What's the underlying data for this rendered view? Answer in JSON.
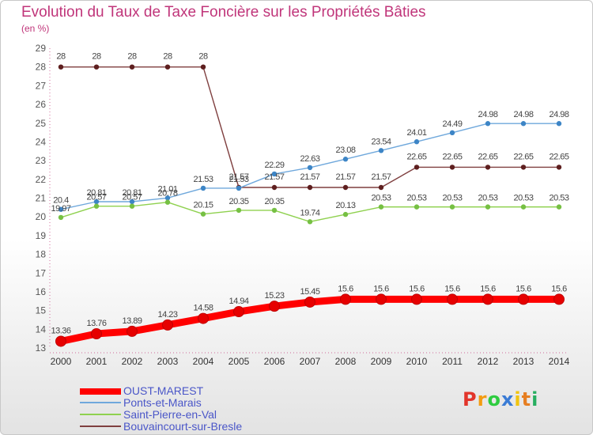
{
  "header": {
    "title": "Evolution du Taux de Taxe Foncière sur les Propriétés Bâties",
    "unit": "(en %)"
  },
  "logo": {
    "text": "Proxiti",
    "colors": [
      "#e2352b",
      "#f39c12",
      "#2ecc40",
      "#3a7bd5",
      "#f1c40f",
      "#e67e22",
      "#27ae60"
    ]
  },
  "chart_data": {
    "type": "line",
    "x": [
      "2000",
      "2001",
      "2002",
      "2003",
      "2004",
      "2005",
      "2006",
      "2007",
      "2008",
      "2009",
      "2010",
      "2011",
      "2012",
      "2013",
      "2014"
    ],
    "ylim": [
      13,
      29
    ],
    "yticks": [
      13,
      14,
      15,
      16,
      17,
      18,
      19,
      20,
      21,
      22,
      23,
      24,
      25,
      26,
      27,
      28,
      29
    ],
    "grid": false,
    "legend_position": "bottom-left",
    "series": [
      {
        "name": "OUST-MAREST",
        "color": "#ff0000",
        "marker": "#e60000",
        "values": [
          13.36,
          13.76,
          13.89,
          14.23,
          14.58,
          14.94,
          15.23,
          15.45,
          15.6,
          15.6,
          15.6,
          15.6,
          15.6,
          15.6,
          15.6
        ],
        "labels": [
          "13.36",
          "13.76",
          "13.89",
          "14.23",
          "14.58",
          "14.94",
          "15.23",
          "15.45",
          "15.6",
          "15.6",
          "15.6",
          "15.6",
          "15.6",
          "15.6",
          "15.6"
        ]
      },
      {
        "name": "Ponts-et-Marais",
        "color": "#6fa8dc",
        "marker": "#3d85c6",
        "values": [
          20.4,
          20.81,
          20.81,
          21.01,
          21.53,
          21.53,
          22.29,
          22.63,
          23.08,
          23.54,
          24.01,
          24.49,
          24.98,
          24.98,
          24.98
        ],
        "labels": [
          "20.4",
          "20.81",
          "20.81",
          "21.01",
          "21.53",
          "21.53",
          "22.29",
          "22.63",
          "23.08",
          "23.54",
          "24.01",
          "24.49",
          "24.98",
          "24.98",
          "24.98"
        ]
      },
      {
        "name": "Saint-Pierre-en-Val",
        "color": "#8fd14f",
        "marker": "#76c043",
        "values": [
          19.97,
          20.57,
          20.57,
          20.78,
          20.15,
          20.35,
          20.35,
          19.74,
          20.13,
          20.53,
          20.53,
          20.53,
          20.53,
          20.53,
          20.53
        ],
        "labels": [
          "19.97",
          "20.57",
          "20.57",
          "20.78",
          "20.15",
          "20.35",
          "20.35",
          "19.74",
          "20.13",
          "20.53",
          "20.53",
          "20.53",
          "20.53",
          "20.53",
          "20.53"
        ]
      },
      {
        "name": "Bouvaincourt-sur-Bresle",
        "color": "#7f3f3f",
        "marker": "#5e1f1f",
        "values": [
          28,
          28,
          28,
          28,
          28,
          21.57,
          21.57,
          21.57,
          21.57,
          21.57,
          22.65,
          22.65,
          22.65,
          22.65,
          22.65
        ],
        "labels": [
          "28",
          "28",
          "28",
          "28",
          "28",
          "21.57",
          "21.57",
          "21.57",
          "21.57",
          "21.57",
          "22.65",
          "22.65",
          "22.65",
          "22.65",
          "22.65"
        ]
      }
    ]
  }
}
